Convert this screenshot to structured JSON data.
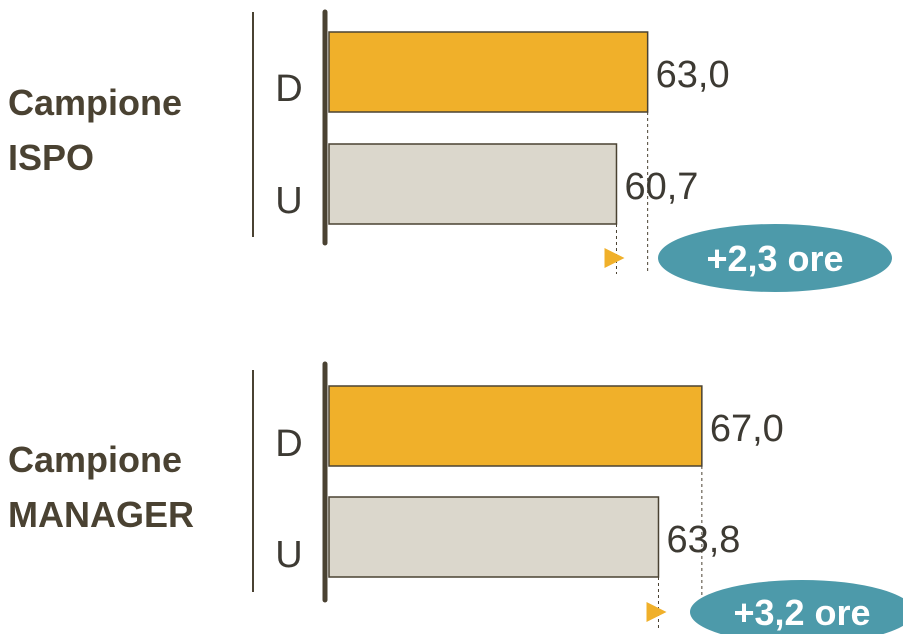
{
  "chart_data": [
    {
      "type": "bar",
      "orientation": "horizontal",
      "group_label_lines": [
        "Campione",
        "ISPO"
      ],
      "categories": [
        "D",
        "U"
      ],
      "values": [
        63.0,
        60.7
      ],
      "value_labels": [
        "63,0",
        "60,7"
      ],
      "difference_label": "+2,3 ore"
    },
    {
      "type": "bar",
      "orientation": "horizontal",
      "group_label_lines": [
        "Campione",
        "MANAGER"
      ],
      "categories": [
        "D",
        "U"
      ],
      "values": [
        67.0,
        63.8
      ],
      "value_labels": [
        "67,0",
        "63,8"
      ],
      "difference_label": "+3,2 ore"
    }
  ],
  "colors": {
    "bar_d": "#f0b02a",
    "bar_u": "#dbd7cc",
    "bar_stroke": "#4a4232",
    "axis": "#4a4232",
    "badge": "#4d9aaa",
    "arrow": "#f0b02a",
    "text": "#3d3a33",
    "group_text": "#4a4232"
  }
}
